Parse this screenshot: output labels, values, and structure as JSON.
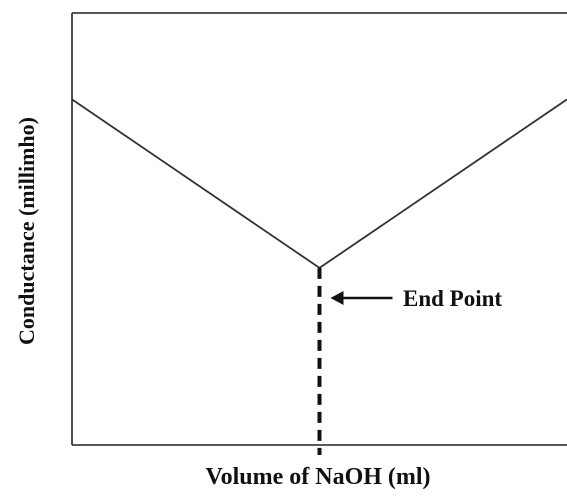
{
  "chart_data": {
    "type": "line",
    "title": "",
    "xlabel": "Volume of NaOH (ml)",
    "ylabel": "Conductance (millimho)",
    "x_ticks": [],
    "y_ticks": [],
    "xlim": [
      0,
      10
    ],
    "ylim": [
      0,
      10
    ],
    "grid": false,
    "series": [
      {
        "x": [
          0,
          5,
          10
        ],
        "y": [
          8.0,
          4.1,
          8.0
        ]
      }
    ],
    "end_point": {
      "x": 5,
      "y": 4.1,
      "label": "End Point"
    }
  }
}
